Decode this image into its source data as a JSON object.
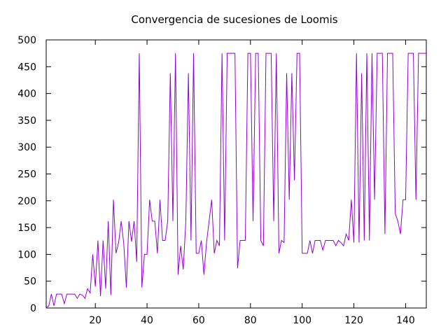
{
  "chart_data": {
    "type": "line",
    "title": "Convergencia de sucesiones de Loomis",
    "xlabel": "",
    "ylabel": "",
    "xlim": [
      1,
      148
    ],
    "ylim": [
      0,
      500
    ],
    "xticks": [
      20,
      40,
      60,
      80,
      100,
      120,
      140
    ],
    "yticks": [
      0,
      50,
      100,
      150,
      200,
      250,
      300,
      350,
      400,
      450,
      500
    ],
    "grid": false,
    "legend": "none",
    "line_color": "#9400d3",
    "series": [
      {
        "values": [
          1,
          4,
          26,
          4,
          26,
          26,
          26,
          8,
          26,
          26,
          26,
          26,
          18,
          26,
          24,
          18,
          36,
          28,
          100,
          40,
          126,
          22,
          126,
          36,
          162,
          24,
          202,
          102,
          122,
          162,
          120,
          38,
          162,
          124,
          162,
          86,
          475,
          38,
          100,
          100,
          202,
          162,
          162,
          102,
          202,
          126,
          126,
          162,
          438,
          162,
          475,
          62,
          116,
          72,
          162,
          438,
          126,
          475,
          102,
          102,
          126,
          62,
          122,
          162,
          202,
          102,
          126,
          116,
          475,
          126,
          475,
          475,
          475,
          475,
          74,
          126,
          126,
          126,
          475,
          475,
          162,
          475,
          475,
          126,
          116,
          475,
          475,
          475,
          162,
          475,
          102,
          126,
          122,
          438,
          202,
          438,
          238,
          475,
          475,
          102,
          102,
          102,
          126,
          102,
          126,
          126,
          126,
          108,
          126,
          126,
          126,
          126,
          116,
          126,
          122,
          116,
          138,
          126,
          202,
          122,
          475,
          122,
          438,
          126,
          475,
          126,
          475,
          202,
          475,
          475,
          475,
          138,
          475,
          475,
          475,
          176,
          162,
          138,
          202,
          202,
          475,
          475,
          475,
          202,
          475,
          475,
          475,
          475
        ]
      }
    ]
  }
}
